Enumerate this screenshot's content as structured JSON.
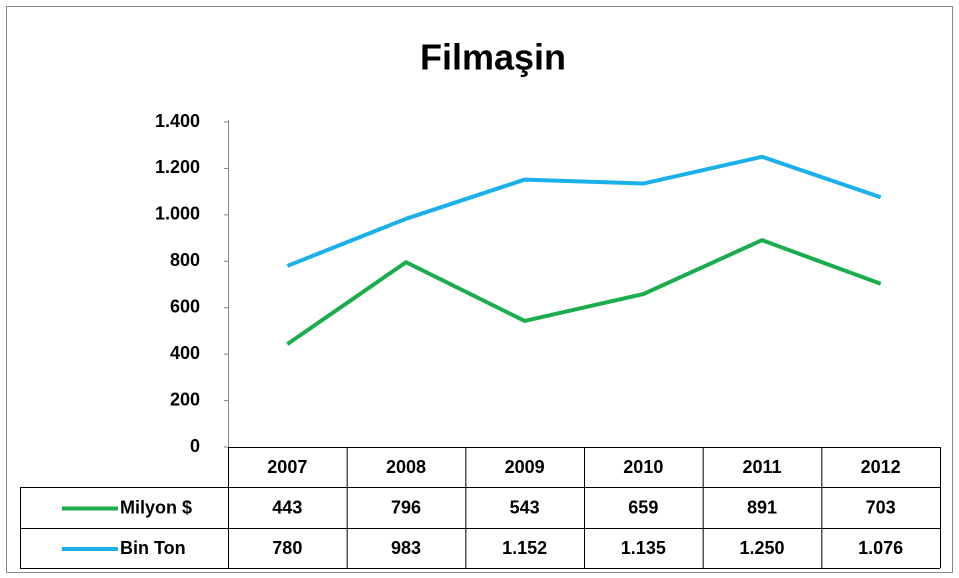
{
  "chart_data": {
    "type": "line",
    "title": "Filmaşin",
    "categories": [
      "2007",
      "2008",
      "2009",
      "2010",
      "2011",
      "2012"
    ],
    "series": [
      {
        "name": "Milyon $",
        "color": "#1aad4b",
        "values": [
          443,
          796,
          543,
          659,
          891,
          703
        ]
      },
      {
        "name": "Bin Ton",
        "color": "#1ab0ea",
        "values": [
          780,
          983,
          1152,
          1135,
          1250,
          1076
        ],
        "value_labels": [
          "780",
          "983",
          "1.152",
          "1.135",
          "1.250",
          "1.076"
        ]
      }
    ],
    "ylim": [
      0,
      1400
    ],
    "yticks": [
      0,
      200,
      400,
      600,
      800,
      {
        "value": 1000,
        "label": "1.000"
      },
      {
        "value": 1200,
        "label": "1.200"
      },
      {
        "value": 1400,
        "label": "1.400"
      }
    ],
    "grid": false
  }
}
